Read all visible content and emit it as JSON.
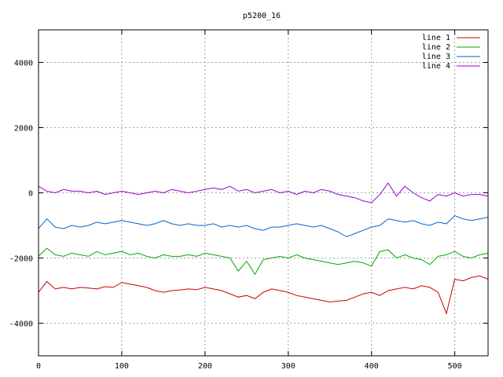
{
  "chart_data": {
    "type": "line",
    "title": "p5200_16",
    "xlabel": "",
    "ylabel": "",
    "xlim": [
      0,
      540
    ],
    "ylim": [
      -5000,
      5000
    ],
    "x_ticks": [
      0,
      100,
      200,
      300,
      400,
      500
    ],
    "y_ticks": [
      -4000,
      -2000,
      0,
      2000,
      4000
    ],
    "grid": true,
    "legend_position": "top-right",
    "x": [
      0,
      10,
      20,
      30,
      40,
      50,
      60,
      70,
      80,
      90,
      100,
      110,
      120,
      130,
      140,
      150,
      160,
      170,
      180,
      190,
      200,
      210,
      220,
      230,
      240,
      250,
      260,
      270,
      280,
      290,
      300,
      310,
      320,
      330,
      340,
      350,
      360,
      370,
      380,
      390,
      400,
      410,
      420,
      430,
      440,
      450,
      460,
      470,
      480,
      490,
      500,
      510,
      520,
      530,
      540
    ],
    "series": [
      {
        "name": "line 1",
        "color": "#cc0000",
        "values": [
          -3050,
          -2720,
          -2950,
          -2900,
          -2950,
          -2900,
          -2920,
          -2950,
          -2880,
          -2900,
          -2750,
          -2800,
          -2850,
          -2900,
          -3000,
          -3050,
          -3000,
          -2980,
          -2950,
          -2970,
          -2900,
          -2950,
          -3000,
          -3100,
          -3200,
          -3150,
          -3250,
          -3050,
          -2950,
          -3000,
          -3050,
          -3150,
          -3200,
          -3250,
          -3300,
          -3350,
          -3320,
          -3300,
          -3200,
          -3100,
          -3050,
          -3150,
          -3000,
          -2950,
          -2900,
          -2950,
          -2850,
          -2900,
          -3050,
          -3700,
          -2650,
          -2700,
          -2600,
          -2550,
          -2650
        ]
      },
      {
        "name": "line 2",
        "color": "#00aa00",
        "values": [
          -1950,
          -1700,
          -1900,
          -1950,
          -1850,
          -1900,
          -1950,
          -1800,
          -1900,
          -1850,
          -1800,
          -1900,
          -1850,
          -1950,
          -2000,
          -1900,
          -1950,
          -1950,
          -1900,
          -1950,
          -1850,
          -1900,
          -1950,
          -2000,
          -2400,
          -2100,
          -2500,
          -2050,
          -2000,
          -1950,
          -2000,
          -1900,
          -2000,
          -2050,
          -2100,
          -2150,
          -2200,
          -2150,
          -2100,
          -2150,
          -2250,
          -1800,
          -1750,
          -2000,
          -1900,
          -2000,
          -2050,
          -2200,
          -1950,
          -1900,
          -1800,
          -1950,
          -2000,
          -1900,
          -1850
        ]
      },
      {
        "name": "line 3",
        "color": "#0066cc",
        "values": [
          -1100,
          -800,
          -1050,
          -1100,
          -1000,
          -1050,
          -1000,
          -900,
          -950,
          -900,
          -850,
          -900,
          -950,
          -1000,
          -950,
          -850,
          -950,
          -1000,
          -950,
          -1000,
          -1000,
          -950,
          -1050,
          -1000,
          -1050,
          -1000,
          -1100,
          -1150,
          -1050,
          -1050,
          -1000,
          -950,
          -1000,
          -1050,
          -1000,
          -1100,
          -1200,
          -1350,
          -1250,
          -1150,
          -1050,
          -1000,
          -800,
          -850,
          -900,
          -850,
          -950,
          -1000,
          -900,
          -950,
          -700,
          -800,
          -850,
          -800,
          -750
        ]
      },
      {
        "name": "line 4",
        "color": "#9900cc",
        "values": [
          200,
          50,
          0,
          100,
          50,
          50,
          0,
          50,
          -50,
          0,
          50,
          0,
          -50,
          0,
          50,
          0,
          100,
          50,
          0,
          50,
          100,
          150,
          100,
          200,
          50,
          100,
          0,
          50,
          100,
          0,
          50,
          -50,
          50,
          0,
          100,
          50,
          -50,
          -100,
          -150,
          -250,
          -300,
          -50,
          300,
          -100,
          200,
          0,
          -150,
          -250,
          -50,
          -100,
          0,
          -100,
          -50,
          -50,
          -100
        ]
      }
    ]
  }
}
